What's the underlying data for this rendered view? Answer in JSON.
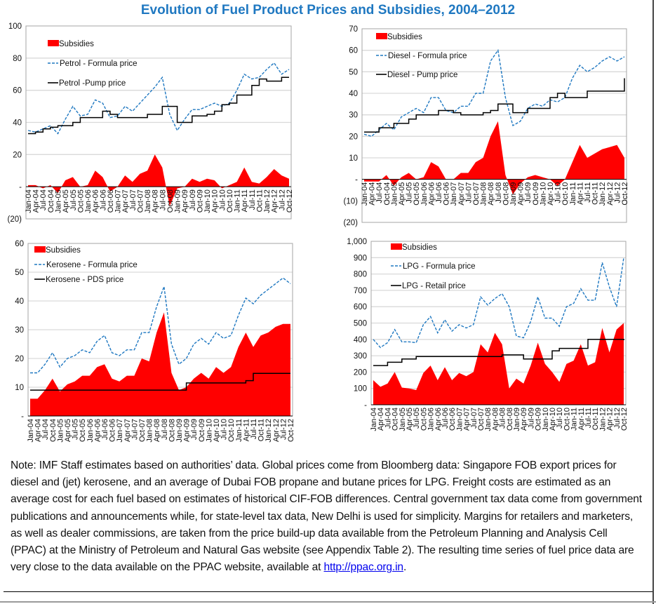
{
  "title": "Evolution of Fuel Product Prices and Subsidies, 2004–2012",
  "colors": {
    "subsidies": "#ff0000",
    "formula": "#1f78c1",
    "pump": "#000000",
    "grid": "#d9d9d9",
    "title": "#1f78c1"
  },
  "chart_data": [
    {
      "type": "area+line",
      "legend": [
        "Subsidies",
        "Petrol - Formula price",
        "Petrol -Pump price"
      ],
      "ylim": [
        -20,
        100
      ],
      "yticks": [
        100,
        80,
        60,
        40,
        20,
        0,
        -20
      ],
      "ytick_labels": [
        "100",
        "80",
        "60",
        "40",
        "20",
        "-",
        "(20)"
      ],
      "categories": [
        "Jan-04",
        "Apr-04",
        "Jul-04",
        "Oct-04",
        "Jan-05",
        "Apr-05",
        "Jul-05",
        "Oct-05",
        "Jan-06",
        "Apr-06",
        "Jul-06",
        "Oct-06",
        "Jan-07",
        "Apr-07",
        "Jul-07",
        "Oct-07",
        "Jan-08",
        "Apr-08",
        "Jul-08",
        "Oct-08",
        "Jan-09",
        "Apr-09",
        "Jul-09",
        "Oct-09",
        "Jan-10",
        "Apr-10",
        "Jul-10",
        "Oct-10",
        "Jan-11",
        "Apr-11",
        "Jul-11",
        "Oct-11",
        "Jan-12",
        "Apr-12",
        "Jul-12",
        "Oct-12"
      ],
      "series": [
        {
          "name": "Subsidies",
          "kind": "area",
          "values": [
            1,
            1,
            -1,
            1,
            -4,
            4,
            6,
            0,
            1,
            10,
            6,
            -3,
            0,
            7,
            3,
            8,
            10,
            20,
            12,
            -12,
            -1,
            0,
            5,
            3,
            5,
            4,
            -1,
            1,
            3,
            12,
            3,
            2,
            6,
            11,
            7,
            5
          ]
        },
        {
          "name": "Petrol - Formula price",
          "kind": "dashed",
          "values": [
            35,
            34,
            36,
            38,
            33,
            42,
            50,
            44,
            45,
            54,
            52,
            43,
            44,
            50,
            47,
            52,
            57,
            62,
            68,
            45,
            35,
            42,
            48,
            48,
            50,
            52,
            50,
            52,
            60,
            70,
            67,
            68,
            73,
            77,
            70,
            73
          ]
        },
        {
          "name": "Petrol -Pump price",
          "kind": "solid",
          "values": [
            33,
            34,
            36,
            37,
            38,
            38,
            40,
            43,
            43,
            43,
            47,
            45,
            43,
            43,
            43,
            43,
            45,
            45,
            50,
            50,
            40,
            40,
            44,
            44,
            45,
            47,
            51,
            52,
            57,
            57,
            63,
            67,
            65.7,
            65.7,
            68,
            68
          ]
        }
      ]
    },
    {
      "type": "area+line",
      "legend": [
        "Subsidies",
        "Diesel - Formula price",
        "Diesel - Pump price"
      ],
      "ylim": [
        -20,
        70
      ],
      "yticks": [
        70,
        60,
        50,
        40,
        30,
        20,
        10,
        0,
        -10,
        -20
      ],
      "ytick_labels": [
        "70",
        "60",
        "50",
        "40",
        "30",
        "20",
        "10",
        "-",
        "(10)",
        "(20)"
      ],
      "categories": [
        "Jan-04",
        "Apr-04",
        "Jul-04",
        "Oct-04",
        "Jan-05",
        "Apr-05",
        "Jul-05",
        "Oct-05",
        "Jan-06",
        "Apr-06",
        "Jul-06",
        "Oct-06",
        "Jan-07",
        "Apr-07",
        "Jul-07",
        "Oct-07",
        "Jan-08",
        "Apr-08",
        "Jul-08",
        "Oct-08",
        "Jan-09",
        "Apr-09",
        "Jul-09",
        "Oct-09",
        "Jan-10",
        "Apr-10",
        "Jul-10",
        "Oct-10",
        "Jan-11",
        "Apr-11",
        "Jul-11",
        "Oct-11",
        "Jan-12",
        "Apr-12",
        "Jul-12",
        "Oct-12"
      ],
      "series": [
        {
          "name": "Subsidies",
          "kind": "area",
          "values": [
            -1,
            -1,
            -1,
            2,
            -3,
            1,
            3,
            0,
            1,
            8,
            6,
            0,
            0,
            3,
            3,
            8,
            10,
            20,
            27,
            2,
            -7,
            -2,
            1,
            2,
            1,
            0,
            -3,
            0,
            8,
            16,
            10,
            12,
            14,
            15,
            16,
            10
          ]
        },
        {
          "name": "Diesel - Formula price",
          "kind": "dashed",
          "values": [
            21,
            20,
            23,
            26,
            23,
            29,
            31,
            33,
            31,
            38,
            38,
            32,
            31,
            34,
            34,
            40,
            40,
            55,
            60,
            38,
            25,
            27,
            33,
            35,
            34,
            37,
            36,
            38,
            47,
            53,
            50,
            52,
            55,
            57,
            55,
            57
          ]
        },
        {
          "name": "Diesel - Pump price",
          "kind": "solid",
          "values": [
            22,
            22,
            24,
            24,
            26,
            26,
            28,
            30,
            30,
            30,
            32,
            32,
            31,
            30,
            30,
            30,
            31,
            32,
            35,
            35,
            31,
            31,
            33,
            33,
            33,
            38,
            40,
            38,
            38,
            38,
            41,
            41,
            41,
            41,
            41,
            47
          ]
        }
      ]
    },
    {
      "type": "area+line",
      "legend": [
        "Subsidies",
        "Kerosene - Formula price",
        "Kerosene - PDS price"
      ],
      "ylim": [
        0,
        60
      ],
      "yticks": [
        60,
        50,
        40,
        30,
        20,
        10,
        0
      ],
      "ytick_labels": [
        "60",
        "50",
        "40",
        "30",
        "20",
        "10",
        "-"
      ],
      "categories": [
        "Jan-04",
        "Apr-04",
        "Jul-04",
        "Oct-04",
        "Jan-05",
        "Apr-05",
        "Jul-05",
        "Oct-05",
        "Jan-06",
        "Apr-06",
        "Jul-06",
        "Oct-06",
        "Jan-07",
        "Apr-07",
        "Jul-07",
        "Oct-07",
        "Jan-08",
        "Apr-08",
        "Jul-08",
        "Oct-08",
        "Jan-09",
        "Apr-09",
        "Jul-09",
        "Oct-09",
        "Jan-10",
        "Apr-10",
        "Jul-10",
        "Oct-10",
        "Jan-11",
        "Apr-11",
        "Jul-11",
        "Oct-11",
        "Jan-12",
        "Apr-12",
        "Jul-12",
        "Oct-12"
      ],
      "series": [
        {
          "name": "Subsidies",
          "kind": "area",
          "values": [
            6,
            6,
            9,
            13,
            8.5,
            11,
            12,
            14,
            14,
            17,
            18,
            13,
            12,
            14,
            14,
            20,
            19,
            29,
            36,
            15,
            9,
            10,
            13,
            15,
            13,
            17,
            15,
            17,
            24,
            29,
            24,
            28,
            29,
            31,
            32,
            32
          ]
        },
        {
          "name": "Kerosene - Formula price",
          "kind": "dashed",
          "values": [
            15,
            15,
            18,
            22,
            17,
            20,
            21,
            23,
            22,
            26,
            28,
            22,
            21,
            23,
            23,
            29,
            29,
            38,
            45,
            25,
            18,
            20,
            25,
            27,
            25,
            29,
            27,
            28,
            35,
            41,
            39,
            42,
            44,
            46,
            48,
            46
          ]
        },
        {
          "name": "Kerosene - PDS price",
          "kind": "solid",
          "values": [
            9,
            9,
            9,
            9,
            9,
            9,
            9,
            9,
            9,
            9,
            9,
            9,
            9,
            9,
            9,
            9,
            9,
            9,
            9,
            9,
            9,
            11.5,
            11.5,
            11.5,
            11.5,
            11.5,
            11.5,
            11.5,
            11.5,
            12.3,
            14.8,
            14.8,
            14.8,
            14.8,
            14.8,
            14.8
          ]
        }
      ]
    },
    {
      "type": "area+line",
      "legend": [
        "Subsidies",
        "LPG - Formula price",
        "LPG - Retail price"
      ],
      "ylim": [
        0,
        1000
      ],
      "yticks": [
        1000,
        900,
        800,
        700,
        600,
        500,
        400,
        300,
        200,
        100,
        0
      ],
      "ytick_labels": [
        "1,000",
        "900",
        "800",
        "700",
        "600",
        "500",
        "400",
        "300",
        "200",
        "100",
        "-"
      ],
      "categories": [
        "Jan-04",
        "Apr-04",
        "Jul-04",
        "Oct-04",
        "Jan-05",
        "Apr-05",
        "Jul-05",
        "Oct-05",
        "Jan-06",
        "Apr-06",
        "Jul-06",
        "Oct-06",
        "Jan-07",
        "Apr-07",
        "Jul-07",
        "Oct-07",
        "Jan-08",
        "Apr-08",
        "Jul-08",
        "Oct-08",
        "Jan-09",
        "Apr-09",
        "Jul-09",
        "Oct-09",
        "Jan-10",
        "Apr-10",
        "Jul-10",
        "Oct-10",
        "Jan-11",
        "Apr-11",
        "Jul-11",
        "Oct-11",
        "Jan-12",
        "Apr-12",
        "Jul-12",
        "Oct-12"
      ],
      "series": [
        {
          "name": "Subsidies",
          "kind": "area",
          "values": [
            150,
            110,
            130,
            200,
            105,
            100,
            90,
            195,
            240,
            150,
            230,
            150,
            195,
            175,
            200,
            370,
            320,
            440,
            370,
            100,
            160,
            130,
            240,
            380,
            250,
            200,
            140,
            250,
            270,
            370,
            240,
            260,
            470,
            320,
            460,
            500
          ]
        },
        {
          "name": "LPG - Formula price",
          "kind": "dashed",
          "values": [
            400,
            350,
            380,
            460,
            385,
            385,
            380,
            490,
            540,
            440,
            520,
            450,
            490,
            470,
            490,
            660,
            610,
            650,
            680,
            600,
            420,
            410,
            510,
            660,
            530,
            530,
            480,
            600,
            620,
            710,
            640,
            640,
            870,
            720,
            600,
            900
          ]
        },
        {
          "name": "LPG - Retail price",
          "kind": "solid",
          "values": [
            240,
            240,
            260,
            260,
            280,
            280,
            295,
            295,
            295,
            295,
            295,
            295,
            295,
            295,
            295,
            295,
            295,
            295,
            305,
            305,
            305,
            280,
            280,
            280,
            280,
            330,
            345,
            345,
            345,
            345,
            400,
            400,
            400,
            400,
            400,
            395
          ]
        }
      ]
    }
  ],
  "note": {
    "text": "Note: IMF Staff estimates based on authorities’ data. Global prices come from Bloomberg data: Singapore FOB export prices for diesel and (jet) kerosene, and an average of Dubai FOB propane and butane prices for LPG. Freight costs are estimated as an average cost for each fuel based on estimates of historical CIF-FOB differences. Central government tax data come from government publications and announcements while, for state-level tax data, New Delhi is used for simplicity. Margins for retailers and marketers, as well as dealer commissions, are taken from the price build-up data available from the Petroleum Planning and Analysis Cell (PPAC) at the Ministry of Petroleum and Natural Gas website (see Appendix Table 2). The resulting time series of fuel price data are very close to the data available on the PPAC website, available at ",
    "link": "http://ppac.org.in",
    "end": "."
  }
}
